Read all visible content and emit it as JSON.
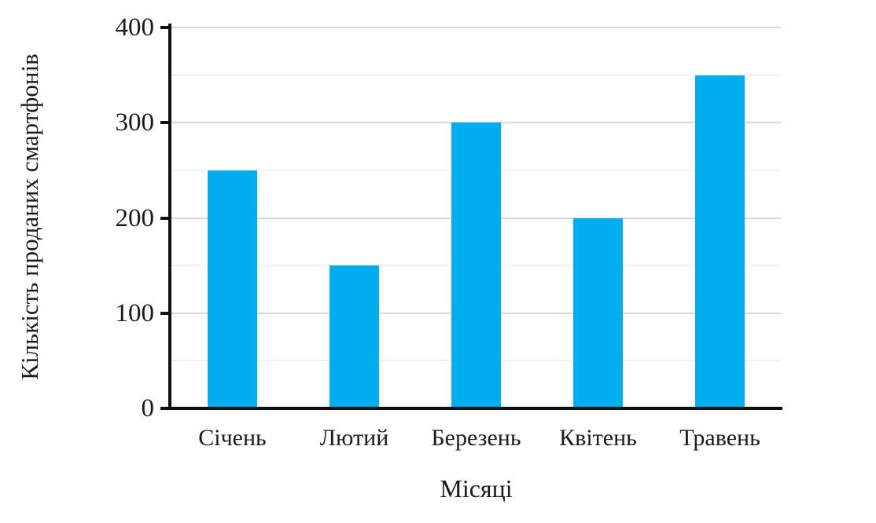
{
  "figure": {
    "background": "#ffffff"
  },
  "chart_data": {
    "type": "bar",
    "title": "",
    "categories": [
      "Січень",
      "Лютий",
      "Березень",
      "Квітень",
      "Травень"
    ],
    "values": [
      250,
      150,
      300,
      200,
      350
    ],
    "xlabel": "Місяці",
    "ylabel": "Кількість проданих смартфонів",
    "ylim": [
      0,
      400
    ],
    "yticks": [
      0,
      100,
      200,
      300,
      400
    ],
    "ytick_labels": [
      "0",
      "100",
      "200",
      "300",
      "400"
    ],
    "minor_gridline_step": 50,
    "major_gridline_step": 100,
    "grid": "horizontal",
    "legend": false,
    "bar_color": "#00AEEF",
    "major_grid_color": "#d8d8d8",
    "minor_grid_color": "#f1f1f1",
    "axis_color": "#111111",
    "text_color": "#1b1b1b"
  }
}
